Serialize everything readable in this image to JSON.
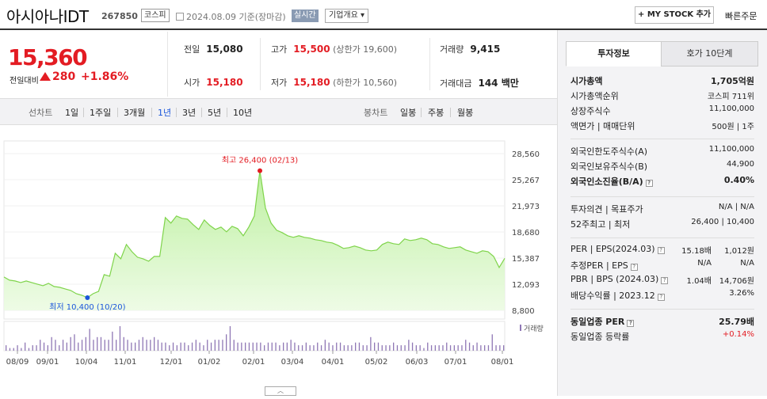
{
  "header": {
    "name": "아시아나IDT",
    "code": "267850",
    "market": "코스피",
    "date_text": "2024.08.09 기준(장마감)",
    "live": "실시간",
    "corp_info": "기업개요 ▾",
    "mystock": "+ MY STOCK 추가",
    "quick_order": "빠른주문"
  },
  "price": {
    "current": "15,360",
    "compare_label": "전일대비",
    "change": "280",
    "rate": "+1.86%"
  },
  "stats": {
    "prev_label": "전일",
    "prev": "15,080",
    "high_label": "고가",
    "high": "15,500",
    "upper": "(상한가 19,600)",
    "volume_label": "거래량",
    "volume": "9,415",
    "open_label": "시가",
    "open": "15,180",
    "low_label": "저가",
    "low": "15,180",
    "lower": "(하한가 10,560)",
    "amount_label": "거래대금",
    "amount": "144 백만"
  },
  "tabs": {
    "line_label": "선차트",
    "periods": [
      "1일",
      "1주일",
      "3개월",
      "1년",
      "3년",
      "5년",
      "10년"
    ],
    "active_period": "1년",
    "candle_label": "봉차트",
    "candles": [
      "일봉",
      "주봉",
      "월봉"
    ]
  },
  "chart_data": {
    "type": "area",
    "y_ticks": [
      "28,560",
      "25,267",
      "21,973",
      "18,680",
      "15,387",
      "12,093",
      "8,800"
    ],
    "ylim": [
      8800,
      28560
    ],
    "x_ticks": [
      "08/09",
      "09/01",
      "10/04",
      "11/01",
      "12/01",
      "01/02",
      "02/01",
      "03/04",
      "04/01",
      "05/02",
      "06/03",
      "07/01",
      "08/01"
    ],
    "series": [
      {
        "values": [
          13000,
          12600,
          12500,
          12300,
          12500,
          12300,
          12100,
          11900,
          12200,
          11800,
          11700,
          11500,
          11300,
          10900,
          10700,
          10400,
          10900,
          11200,
          13300,
          13100,
          16000,
          15300,
          17100,
          16200,
          15500,
          15300,
          15000,
          15600,
          15600,
          20500,
          19800,
          20700,
          20400,
          20300,
          19600,
          19000,
          20200,
          19500,
          19000,
          19300,
          18700,
          19400,
          19100,
          18200,
          19300,
          20700,
          26400,
          21700,
          19800,
          18900,
          18600,
          18200,
          18000,
          18200,
          18000,
          17900,
          17700,
          17600,
          17400,
          17300,
          17000,
          16600,
          16700,
          16900,
          16700,
          16400,
          16300,
          16400,
          17100,
          17400,
          17200,
          17100,
          17800,
          17600,
          17700,
          17900,
          17700,
          17200,
          17100,
          16800,
          16600,
          16700,
          16800,
          16400,
          16200,
          16000,
          16300,
          16200,
          15600,
          14200,
          15360
        ]
      }
    ],
    "high_annotation": "최고 26,400 (02/13)",
    "low_annotation": "최저 10,400 (10/20)",
    "volume_label": "거래량",
    "volume_values": [
      2,
      1,
      1,
      2,
      1,
      3,
      1,
      2,
      2,
      4,
      3,
      2,
      5,
      4,
      2,
      4,
      3,
      5,
      6,
      3,
      4,
      5,
      8,
      4,
      5,
      5,
      4,
      4,
      7,
      4,
      9,
      5,
      4,
      3,
      3,
      4,
      5,
      4,
      4,
      5,
      4,
      3,
      3,
      2,
      3,
      2,
      3,
      3,
      2,
      3,
      4,
      3,
      2,
      4,
      3,
      4,
      4,
      4,
      6,
      9,
      4,
      3,
      3,
      3,
      3,
      3,
      3,
      3,
      2,
      3,
      3,
      3,
      2,
      3,
      3,
      4,
      3,
      2,
      2,
      3,
      2,
      2,
      3,
      2,
      4,
      3,
      2,
      3,
      3,
      2,
      2,
      2,
      3,
      3,
      2,
      2,
      5,
      3,
      3,
      2,
      2,
      2,
      3,
      2,
      2,
      2,
      4,
      3,
      2,
      2,
      1,
      3,
      2,
      2,
      2,
      2,
      3,
      2,
      2,
      2,
      2,
      4,
      3,
      2,
      3,
      2,
      2,
      2,
      6,
      2,
      2,
      2
    ]
  },
  "sidebar": {
    "tab_invest": "투자정보",
    "tab_hoga": "호가 10단계",
    "rows1": [
      {
        "k": "시가총액",
        "v": "1,705억원",
        "bold": true
      },
      {
        "k": "시가총액순위",
        "v": "코스피 711위"
      },
      {
        "k": "상장주식수",
        "v": "11,100,000"
      },
      {
        "k": "액면가 | 매매단위",
        "v": "500원 | 1주"
      }
    ],
    "rows2": [
      {
        "k": "외국인한도주식수(A)",
        "v": "11,100,000"
      },
      {
        "k": "외국인보유주식수(B)",
        "v": "44,900"
      },
      {
        "k": "외국인소진율(B/A)",
        "v": "0.40%",
        "bold": true
      }
    ],
    "rows3": [
      {
        "k": "투자의견 | 목표주가",
        "v": "N/A | N/A"
      },
      {
        "k": "52주최고 | 최저",
        "v": "26,400 | 10,400"
      }
    ],
    "rows4": [
      {
        "k": "PER | EPS(2024.03)",
        "m": "15.18배",
        "v": "1,012원"
      },
      {
        "k": "추정PER | EPS",
        "m": "N/A",
        "v": "N/A"
      },
      {
        "k": "PBR | BPS (2024.03)",
        "m": "1.04배",
        "v": "14,706원"
      },
      {
        "k": "배당수익률 | 2023.12",
        "v": "3.26%"
      }
    ],
    "rows5": [
      {
        "k": "동일업종 PER",
        "v": "25.79배",
        "bold": true
      },
      {
        "k": "동일업종 등락률",
        "v": "+0.14%",
        "red": true
      }
    ]
  }
}
